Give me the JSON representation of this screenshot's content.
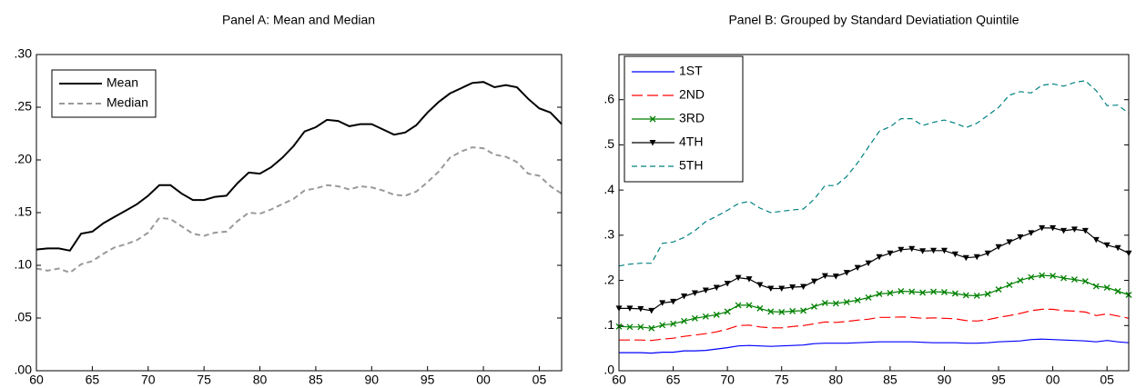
{
  "chart_data": [
    {
      "type": "line",
      "title": "Panel A: Mean and Median",
      "x": [
        1960,
        1961,
        1962,
        1963,
        1964,
        1965,
        1966,
        1967,
        1968,
        1969,
        1970,
        1971,
        1972,
        1973,
        1974,
        1975,
        1976,
        1977,
        1978,
        1979,
        1980,
        1981,
        1982,
        1983,
        1984,
        1985,
        1986,
        1987,
        1988,
        1989,
        1990,
        1991,
        1992,
        1993,
        1994,
        1995,
        1996,
        1997,
        1998,
        1999,
        2000,
        2001,
        2002,
        2003,
        2004,
        2005,
        2006,
        2007
      ],
      "xlim": [
        1960,
        2007
      ],
      "xticks": [
        {
          "value": 1960,
          "label": "60"
        },
        {
          "value": 1965,
          "label": "65"
        },
        {
          "value": 1970,
          "label": "70"
        },
        {
          "value": 1975,
          "label": "75"
        },
        {
          "value": 1980,
          "label": "80"
        },
        {
          "value": 1985,
          "label": "85"
        },
        {
          "value": 1990,
          "label": "90"
        },
        {
          "value": 1995,
          "label": "95"
        },
        {
          "value": 2000,
          "label": "00"
        },
        {
          "value": 2005,
          "label": "05"
        }
      ],
      "ylim": [
        0,
        0.3
      ],
      "yticks": [
        {
          "value": 0,
          "label": ".00"
        },
        {
          "value": 0.05,
          "label": ".05"
        },
        {
          "value": 0.1,
          "label": ".10"
        },
        {
          "value": 0.15,
          "label": ".15"
        },
        {
          "value": 0.2,
          "label": ".20"
        },
        {
          "value": 0.25,
          "label": ".25"
        },
        {
          "value": 0.3,
          "label": ".30"
        }
      ],
      "legend": "upper-left",
      "series": [
        {
          "name": "Mean",
          "color": "#000000",
          "dash": "solid",
          "values": [
            0.115,
            0.116,
            0.116,
            0.114,
            0.13,
            0.132,
            0.14,
            0.146,
            0.152,
            0.158,
            0.166,
            0.176,
            0.176,
            0.168,
            0.162,
            0.162,
            0.165,
            0.166,
            0.178,
            0.188,
            0.187,
            0.193,
            0.202,
            0.213,
            0.227,
            0.231,
            0.238,
            0.237,
            0.232,
            0.234,
            0.234,
            0.229,
            0.224,
            0.226,
            0.233,
            0.245,
            0.255,
            0.263,
            0.268,
            0.273,
            0.274,
            0.269,
            0.271,
            0.269,
            0.258,
            0.249,
            0.245,
            0.234
          ]
        },
        {
          "name": "Median",
          "color": "#999999",
          "dash": "dashed",
          "values": [
            0.097,
            0.095,
            0.097,
            0.093,
            0.101,
            0.104,
            0.111,
            0.117,
            0.12,
            0.124,
            0.131,
            0.145,
            0.144,
            0.137,
            0.13,
            0.128,
            0.131,
            0.132,
            0.142,
            0.15,
            0.149,
            0.153,
            0.158,
            0.163,
            0.171,
            0.173,
            0.176,
            0.175,
            0.172,
            0.175,
            0.174,
            0.171,
            0.167,
            0.166,
            0.17,
            0.179,
            0.189,
            0.202,
            0.208,
            0.212,
            0.211,
            0.205,
            0.203,
            0.198,
            0.187,
            0.185,
            0.175,
            0.168
          ]
        }
      ]
    },
    {
      "type": "line",
      "title": "Panel B: Grouped by Standard Deviatiation Quintile",
      "x": [
        1960,
        1961,
        1962,
        1963,
        1964,
        1965,
        1966,
        1967,
        1968,
        1969,
        1970,
        1971,
        1972,
        1973,
        1974,
        1975,
        1976,
        1977,
        1978,
        1979,
        1980,
        1981,
        1982,
        1983,
        1984,
        1985,
        1986,
        1987,
        1988,
        1989,
        1990,
        1991,
        1992,
        1993,
        1994,
        1995,
        1996,
        1997,
        1998,
        1999,
        2000,
        2001,
        2002,
        2003,
        2004,
        2005,
        2006,
        2007
      ],
      "xlim": [
        1960,
        2007
      ],
      "xticks": [
        {
          "value": 1960,
          "label": "60"
        },
        {
          "value": 1965,
          "label": "65"
        },
        {
          "value": 1970,
          "label": "70"
        },
        {
          "value": 1975,
          "label": "75"
        },
        {
          "value": 1980,
          "label": "80"
        },
        {
          "value": 1985,
          "label": "85"
        },
        {
          "value": 1990,
          "label": "90"
        },
        {
          "value": 1995,
          "label": "95"
        },
        {
          "value": 2000,
          "label": "00"
        },
        {
          "value": 2005,
          "label": "05"
        }
      ],
      "ylim": [
        0,
        0.7
      ],
      "yticks": [
        {
          "value": 0,
          "label": ".0"
        },
        {
          "value": 0.1,
          "label": ".1"
        },
        {
          "value": 0.2,
          "label": ".2"
        },
        {
          "value": 0.3,
          "label": ".3"
        },
        {
          "value": 0.4,
          "label": ".4"
        },
        {
          "value": 0.5,
          "label": ".5"
        },
        {
          "value": 0.6,
          "label": ".6"
        }
      ],
      "legend": "upper-left",
      "series": [
        {
          "name": "1ST",
          "color": "#0000ff",
          "dash": "solid",
          "values": [
            0.04,
            0.04,
            0.04,
            0.039,
            0.041,
            0.041,
            0.044,
            0.044,
            0.045,
            0.048,
            0.051,
            0.055,
            0.056,
            0.055,
            0.054,
            0.055,
            0.056,
            0.057,
            0.06,
            0.061,
            0.061,
            0.061,
            0.062,
            0.063,
            0.064,
            0.064,
            0.064,
            0.064,
            0.063,
            0.062,
            0.062,
            0.062,
            0.061,
            0.061,
            0.062,
            0.064,
            0.065,
            0.066,
            0.069,
            0.07,
            0.069,
            0.068,
            0.067,
            0.066,
            0.064,
            0.067,
            0.064,
            0.062
          ]
        },
        {
          "name": "2ND",
          "color": "#ff0000",
          "dash": "longdash",
          "values": [
            0.068,
            0.068,
            0.068,
            0.067,
            0.07,
            0.072,
            0.076,
            0.079,
            0.082,
            0.086,
            0.092,
            0.1,
            0.101,
            0.097,
            0.095,
            0.095,
            0.098,
            0.1,
            0.104,
            0.108,
            0.107,
            0.109,
            0.112,
            0.114,
            0.118,
            0.118,
            0.119,
            0.118,
            0.116,
            0.117,
            0.116,
            0.115,
            0.111,
            0.11,
            0.113,
            0.118,
            0.122,
            0.127,
            0.133,
            0.136,
            0.136,
            0.133,
            0.132,
            0.13,
            0.122,
            0.126,
            0.121,
            0.116
          ]
        },
        {
          "name": "3RD",
          "color": "#008000",
          "dash": "solid",
          "marker": "x",
          "values": [
            0.098,
            0.097,
            0.097,
            0.094,
            0.101,
            0.104,
            0.11,
            0.116,
            0.12,
            0.124,
            0.131,
            0.145,
            0.145,
            0.138,
            0.131,
            0.13,
            0.132,
            0.133,
            0.142,
            0.15,
            0.149,
            0.152,
            0.156,
            0.162,
            0.17,
            0.172,
            0.176,
            0.175,
            0.173,
            0.175,
            0.174,
            0.171,
            0.167,
            0.166,
            0.17,
            0.18,
            0.19,
            0.2,
            0.207,
            0.211,
            0.21,
            0.205,
            0.202,
            0.198,
            0.187,
            0.184,
            0.176,
            0.168
          ]
        },
        {
          "name": "4TH",
          "color": "#000000",
          "dash": "solid",
          "marker": "triangle-down",
          "values": [
            0.138,
            0.138,
            0.137,
            0.133,
            0.15,
            0.153,
            0.165,
            0.172,
            0.178,
            0.184,
            0.193,
            0.206,
            0.203,
            0.19,
            0.182,
            0.182,
            0.185,
            0.186,
            0.198,
            0.21,
            0.209,
            0.217,
            0.228,
            0.238,
            0.252,
            0.26,
            0.268,
            0.27,
            0.265,
            0.266,
            0.266,
            0.258,
            0.25,
            0.252,
            0.26,
            0.274,
            0.285,
            0.296,
            0.305,
            0.316,
            0.316,
            0.31,
            0.313,
            0.31,
            0.29,
            0.278,
            0.272,
            0.26
          ]
        },
        {
          "name": "5TH",
          "color": "#008080",
          "dash": "dashed",
          "values": [
            0.232,
            0.236,
            0.238,
            0.238,
            0.282,
            0.285,
            0.295,
            0.31,
            0.33,
            0.342,
            0.355,
            0.37,
            0.375,
            0.36,
            0.35,
            0.353,
            0.356,
            0.358,
            0.38,
            0.41,
            0.41,
            0.43,
            0.46,
            0.495,
            0.53,
            0.54,
            0.558,
            0.558,
            0.543,
            0.55,
            0.555,
            0.548,
            0.538,
            0.548,
            0.565,
            0.583,
            0.61,
            0.618,
            0.615,
            0.632,
            0.635,
            0.63,
            0.638,
            0.642,
            0.62,
            0.587,
            0.588,
            0.57
          ]
        }
      ]
    }
  ]
}
